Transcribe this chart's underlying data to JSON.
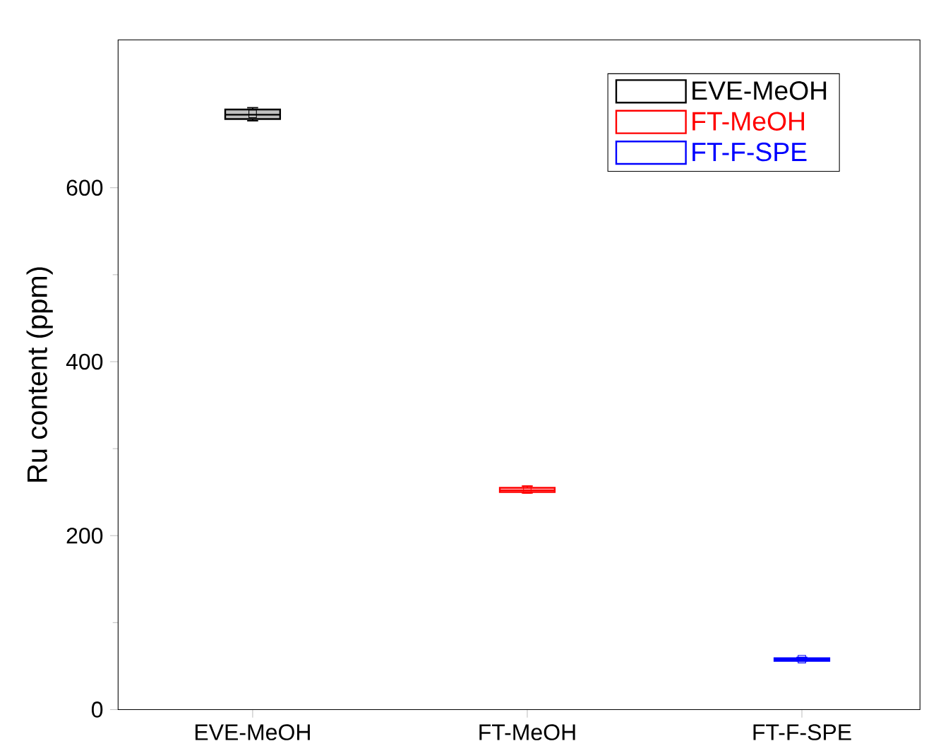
{
  "chart_data": {
    "type": "box",
    "ylabel": "Ru content (ppm)",
    "categories": [
      "EVE-MeOH",
      "FT-MeOH",
      "FT-F-SPE"
    ],
    "ylim": [
      0,
      770
    ],
    "yticks": [
      0,
      200,
      400,
      600
    ],
    "legend": "top right",
    "grid": false,
    "series": [
      {
        "name": "EVE-MeOH",
        "color": "#000000",
        "boxes": [
          {
            "low": 677,
            "q1": 679,
            "median": 684,
            "q3": 690,
            "high": 692,
            "mean": 685
          },
          null,
          null
        ]
      },
      {
        "name": "FT-MeOH",
        "color": "#ff0000",
        "boxes": [
          null,
          {
            "low": 249,
            "q1": 250,
            "median": 252,
            "q3": 255,
            "high": 257,
            "mean": 253
          },
          null
        ]
      },
      {
        "name": "FT-F-SPE",
        "color": "#0000ff",
        "boxes": [
          null,
          null,
          {
            "low": 56,
            "q1": 56,
            "median": 57,
            "q3": 59,
            "high": 60,
            "mean": 58
          }
        ]
      }
    ]
  }
}
